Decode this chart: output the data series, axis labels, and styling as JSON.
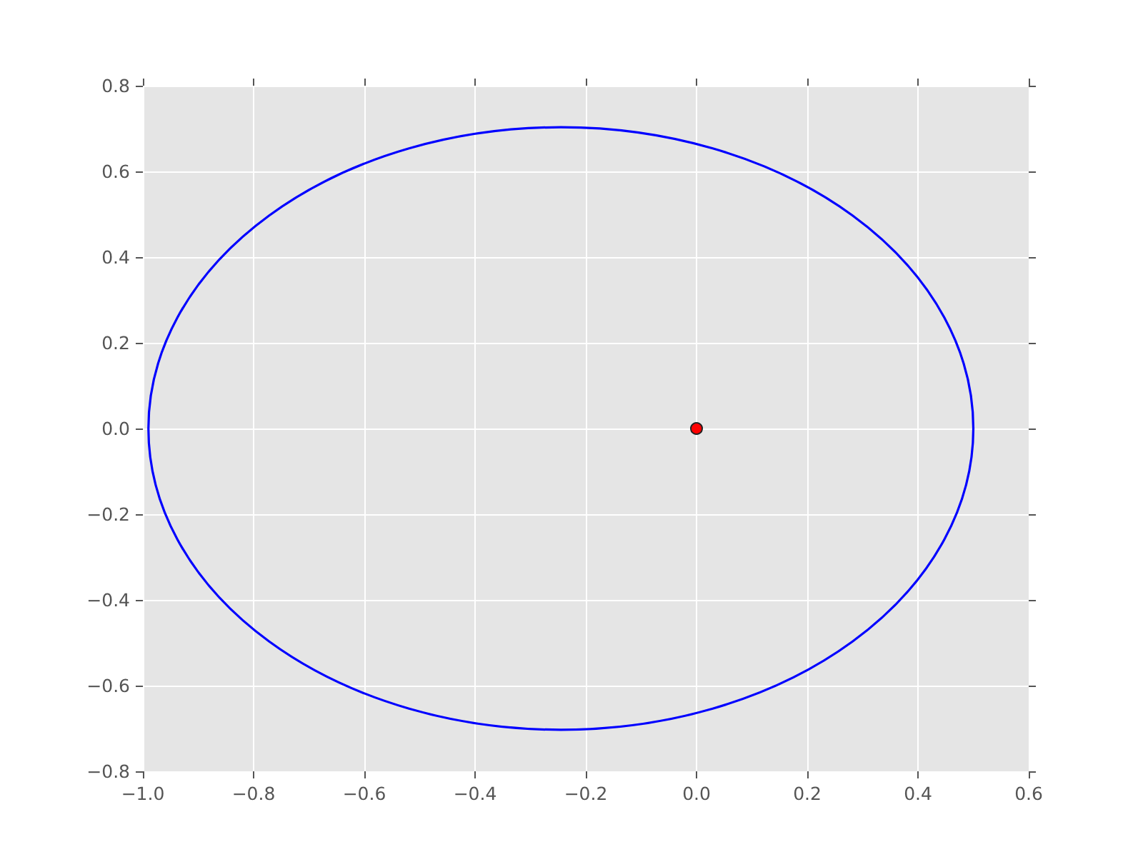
{
  "chart_data": {
    "type": "scatter",
    "xlim": [
      -1.0,
      0.6
    ],
    "ylim": [
      -0.8,
      0.8
    ],
    "xticks": [
      {
        "value": -1.0,
        "label": "−1.0"
      },
      {
        "value": -0.8,
        "label": "−0.8"
      },
      {
        "value": -0.6,
        "label": "−0.6"
      },
      {
        "value": -0.4,
        "label": "−0.4"
      },
      {
        "value": -0.2,
        "label": "−0.2"
      },
      {
        "value": 0,
        "label": "0.0"
      },
      0.2,
      0.4,
      0.6
    ],
    "yticks": [
      {
        "value": -0.8,
        "label": "−0.8"
      },
      {
        "value": -0.6,
        "label": "−0.6"
      },
      {
        "value": -0.4,
        "label": "−0.4"
      },
      {
        "value": -0.2,
        "label": "−0.2"
      },
      {
        "value": 0,
        "label": "0.0"
      },
      0.2,
      0.4,
      0.6,
      0.8
    ],
    "grid": true,
    "marker": "circle",
    "color": "#ff0000",
    "x": [
      0
    ],
    "values": [
      0
    ]
  }
}
